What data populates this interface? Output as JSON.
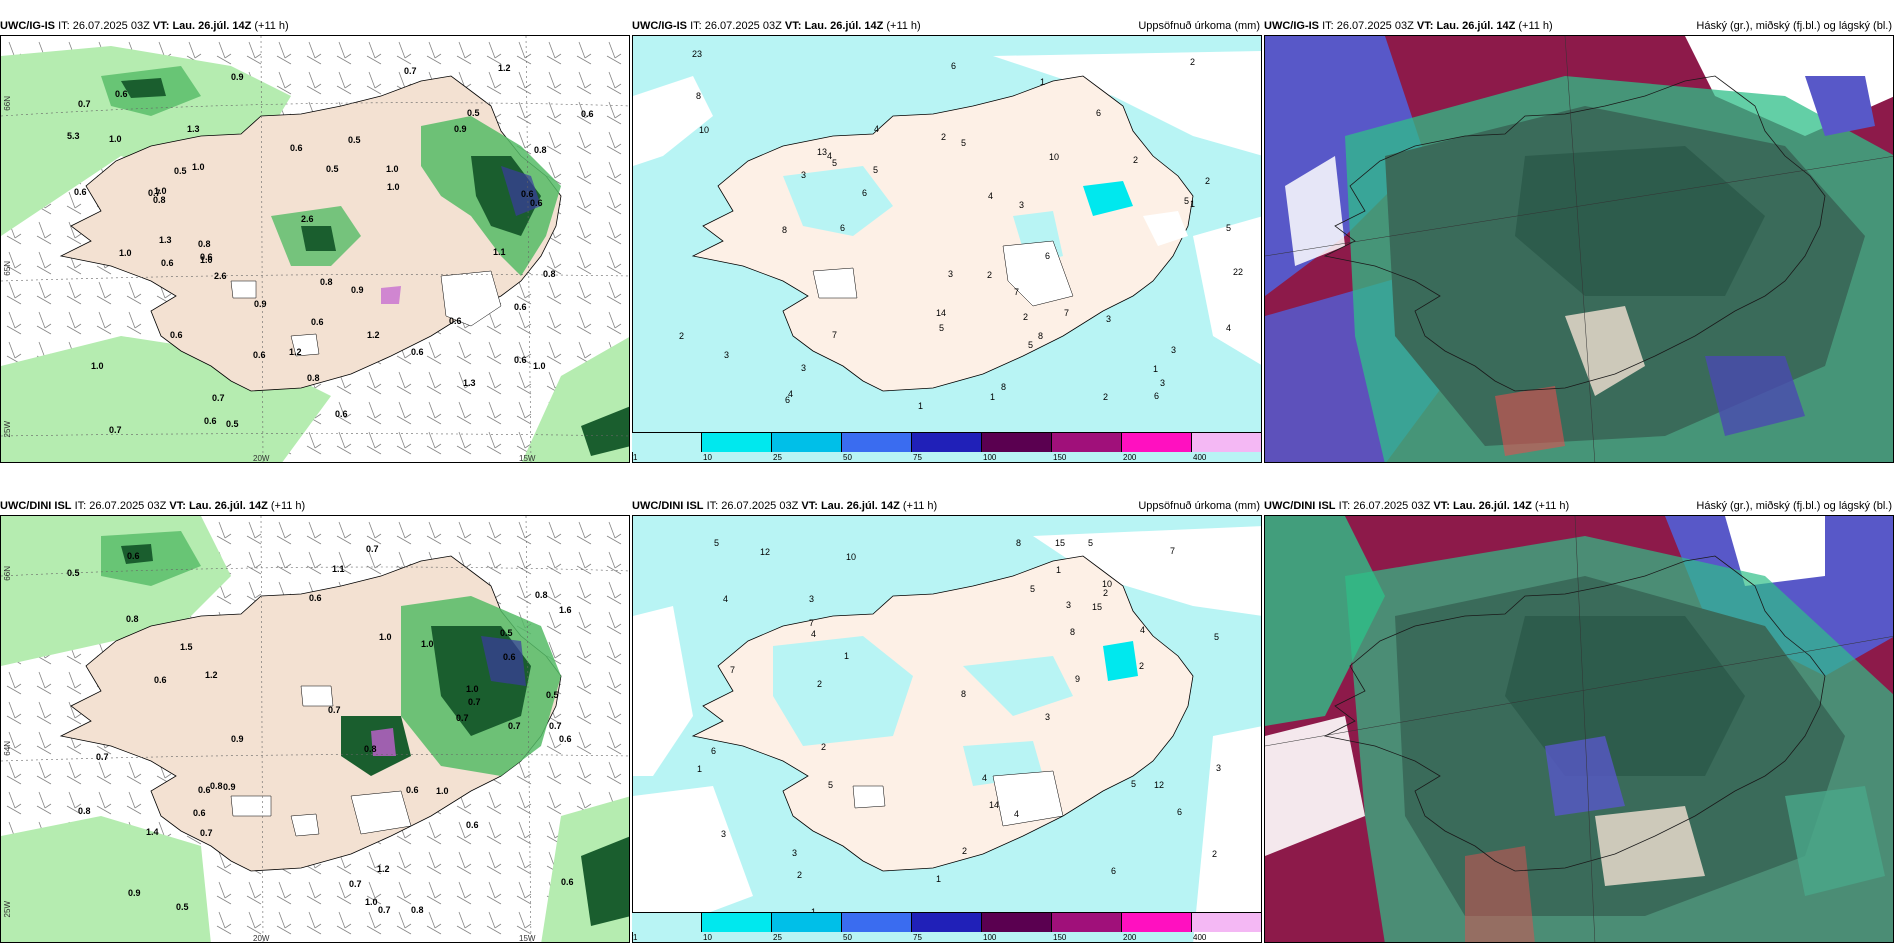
{
  "panels": {
    "ig_precip": {
      "model": "UWC/IG-IS",
      "it_label": "IT:",
      "it": "26.07.2025 03Z",
      "vt_label": "VT:",
      "vt": "Lau. 26.júl. 14Z",
      "lead": "(+11 h)",
      "title": ""
    },
    "ig_accum": {
      "model": "UWC/IG-IS",
      "it_label": "IT:",
      "it": "26.07.2025 03Z",
      "vt_label": "VT:",
      "vt": "Lau. 26.júl. 14Z",
      "lead": "(+11 h)",
      "title": "Uppsöfnuð úrkoma (mm)"
    },
    "ig_cloud": {
      "model": "UWC/IG-IS",
      "it_label": "IT:",
      "it": "26.07.2025 03Z",
      "vt_label": "VT:",
      "vt": "Lau. 26.júl. 14Z",
      "lead": "(+11 h)",
      "title": "Háský (gr.), miðský (fj.bl.) og lágský (bl.)"
    },
    "dini_precip": {
      "model": "UWC/DINI ISL",
      "it_label": "IT:",
      "it": "26.07.2025 03Z",
      "vt_label": "VT:",
      "vt": "Lau. 26.júl. 14Z",
      "lead": "(+11 h)",
      "title": ""
    },
    "dini_accum": {
      "model": "UWC/DINI ISL",
      "it_label": "IT:",
      "it": "26.07.2025 03Z",
      "vt_label": "VT:",
      "vt": "Lau. 26.júl. 14Z",
      "lead": "(+11 h)",
      "title": "Uppsöfnuð úrkoma (mm)"
    },
    "dini_cloud": {
      "model": "UWC/DINI ISL",
      "it_label": "IT:",
      "it": "26.07.2025 03Z",
      "vt_label": "VT:",
      "vt": "Lau. 26.júl. 14Z",
      "lead": "(+11 h)",
      "title": "Háský (gr.), miðský (fj.bl.) og lágský (bl.)"
    }
  },
  "grid_labels": {
    "lon_20w": "20W",
    "lon_15w": "15W",
    "lon_25w": "25W",
    "lat_66n": "66N",
    "lat_65n": "65N",
    "lat_64n": "64N"
  },
  "colorbar": {
    "labels": [
      "1",
      "10",
      "25",
      "50",
      "75",
      "100",
      "150",
      "200",
      "400"
    ],
    "colors": [
      "#b8f4f4",
      "#00e8ee",
      "#00bfe8",
      "#3a6cf0",
      "#2020b8",
      "#5a0050",
      "#a0107a",
      "#ff10c0",
      "#f4b8f4"
    ]
  },
  "colors": {
    "land": "#f3e1d2",
    "land_accum": "#fdf0e6",
    "sea_accum": "#b8f4f4",
    "precip_light": "#b5ecb0",
    "precip_mid": "#55bb66",
    "precip_dark": "#1a5e2e",
    "high_cloud": "#3a6b5a",
    "mid_cloud": "#8d1a4a",
    "low_cloud": "#5858c8"
  },
  "ig_precip_values": [
    "0.6",
    "0.6",
    "0.7",
    "0.6",
    "0.5",
    "0.8",
    "1.0",
    "0.6",
    "0.9",
    "1.0",
    "0.5",
    "0.6",
    "1.0",
    "0.6",
    "0.7",
    "0.6",
    "0.9",
    "0.7",
    "0.6",
    "0.7",
    "0.5",
    "1.0",
    "1.3",
    "0.6",
    "1.3",
    "0.9",
    "1.3",
    "5.3",
    "0.8",
    "0.6",
    "0.5",
    "0.6",
    "1.0",
    "0.6",
    "0.6",
    "0.9",
    "1.0",
    "1.1",
    "0.6",
    "1.0",
    "0.8",
    "0.7",
    "1.0",
    "0.8",
    "0.6",
    "1.2",
    "0.6",
    "0.8",
    "1.2",
    "0.8",
    "1.0",
    "1.2",
    "2.6",
    "0.5",
    "0.6",
    "2.6"
  ],
  "dini_precip_values": [
    "0.7",
    "1.0",
    "0.6",
    "0.8",
    "0.6",
    "0.8",
    "0.5",
    "0.7",
    "0.6",
    "1.0",
    "0.6",
    "0.9",
    "0.7",
    "0.6",
    "0.5",
    "0.8",
    "0.7",
    "0.9",
    "1.0",
    "0.7",
    "0.8",
    "0.9",
    "0.7",
    "0.5",
    "0.6",
    "1.6",
    "1.0",
    "1.1",
    "0.6",
    "1.0",
    "0.6",
    "0.6",
    "0.7",
    "0.8",
    "1.2",
    "0.8",
    "0.7",
    "0.6",
    "1.5",
    "1.4",
    "0.5",
    "0.7",
    "1.2",
    "0.7"
  ],
  "ig_accum_values": [
    "3",
    "2",
    "4",
    "3",
    "6",
    "5",
    "5",
    "3",
    "1",
    "4",
    "6",
    "1",
    "3",
    "2",
    "5",
    "10",
    "5",
    "5",
    "6",
    "6",
    "3",
    "4",
    "2",
    "23",
    "2",
    "1",
    "6",
    "13",
    "3",
    "22",
    "1",
    "2",
    "14",
    "6",
    "4",
    "8",
    "2",
    "3",
    "10",
    "8",
    "7",
    "2",
    "5",
    "7",
    "7",
    "8",
    "1",
    "2",
    "8",
    "4",
    "3",
    "5",
    "6"
  ],
  "dini_accum_values": [
    "2",
    "3",
    "2",
    "1",
    "2",
    "3",
    "4",
    "3",
    "4",
    "2",
    "5",
    "1",
    "1",
    "7",
    "6",
    "15",
    "12",
    "8",
    "15",
    "10",
    "14",
    "4",
    "6",
    "5",
    "12",
    "2",
    "4",
    "10",
    "9",
    "5",
    "3",
    "8",
    "6",
    "7",
    "5",
    "3",
    "2",
    "1",
    "4",
    "5",
    "7",
    "8",
    "2",
    "3",
    "5",
    "1"
  ]
}
